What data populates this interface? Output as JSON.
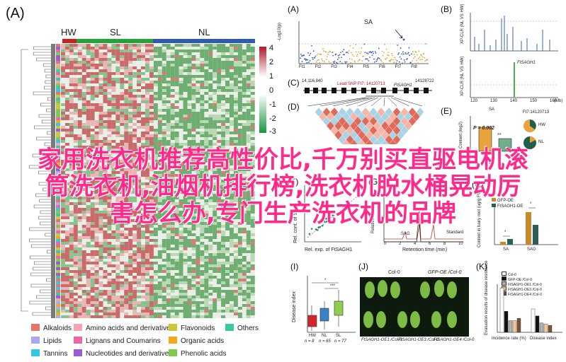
{
  "panelA": {
    "label": "(A)",
    "groups": [
      {
        "name": "HW",
        "color": "#cc1f1f"
      },
      {
        "name": "SL",
        "color": "#22a43a"
      },
      {
        "name": "NL",
        "color": "#2f59b5"
      }
    ],
    "colorbar_ticks": [
      "4",
      "2",
      "1",
      "0",
      "-1",
      "-2",
      "-3"
    ],
    "legend": [
      {
        "name": "Alkaloids",
        "color": "#e8726c"
      },
      {
        "name": "Amino acids and derivatives",
        "color": "#f2a5b4"
      },
      {
        "name": "Flavonoids",
        "color": "#c7c83a"
      },
      {
        "name": "Others",
        "color": "#3cc8a0"
      },
      {
        "name": "Lipids",
        "color": "#a9a9f0"
      },
      {
        "name": "Lignans and Coumarins",
        "color": "#e96aa3"
      },
      {
        "name": "Organic acids",
        "color": "#f2a81f"
      },
      {
        "name": "Tannins",
        "color": "#35c6e6"
      },
      {
        "name": "Nucleotides and derivatives",
        "color": "#9b5bd2"
      },
      {
        "name": "Phenolic acids",
        "color": "#7fca4a"
      }
    ]
  },
  "panelB_A": {
    "label": "(A)",
    "title": "SA",
    "ylabel": "-Log10(p)",
    "chromosomes": [
      "Ft1",
      "Ft2",
      "Ft3",
      "Ft4",
      "Ft5",
      "Ft6",
      "Ft7",
      "Ft8"
    ],
    "yticks": [
      "0",
      "2",
      "4",
      "6",
      "8",
      "10"
    ]
  },
  "panelB": {
    "label": "(B)",
    "top_ylabel": "XP-CLR (NL VS HW)",
    "bottom_ylabel": "XP-CLR (NL VS HW)",
    "gene": "FtSAGH1",
    "xticks": [
      "120",
      "130",
      "140",
      "150",
      "160"
    ],
    "xunit": "(Mb)"
  },
  "panelC": {
    "label": "(C)",
    "left_pos": "14,116,840",
    "right_pos": "14128722",
    "lead_snp": "Lead SNP Ft7: 14120713",
    "gene": "FtSAGH1",
    "scale": "1.0kb"
  },
  "panelD": {
    "label": "(D)"
  },
  "panelE": {
    "label": "(E)",
    "title": "SA",
    "snp": "Ft7:14120713",
    "pvalue": "P = 0.002",
    "sig": "**",
    "ylabel": "Content (log2)",
    "n": "n = 12",
    "pie_labels": [
      "HW",
      "NL"
    ]
  },
  "panelF": {
    "label": "(F)",
    "xlabel": "Rel. exp. of FtSAGH1",
    "ylabel": "Rel. cont. of SA"
  },
  "panelG": {
    "label": "(G)",
    "xlabel": "Retention time (min)",
    "ylabel": "Relative intensity",
    "peaks": [
      "SAG",
      "Standard"
    ],
    "xticks": [
      "0",
      "2",
      "4",
      "6",
      "8",
      "10"
    ]
  },
  "panelH": {
    "label": "(H)",
    "series": [
      "GFP-OE",
      "FtSAGH1-OE"
    ],
    "categories": [
      "SA",
      "SAG"
    ],
    "ylabel": "Content in hairy root (ug/g FW)",
    "sig": [
      "*",
      "*"
    ]
  },
  "panelI": {
    "label": "(I)",
    "ylabel": "Disease index",
    "groups": [
      "HW",
      "NL",
      "SL"
    ],
    "ns": [
      "n = 8",
      "n = 65",
      "n = 77"
    ],
    "sig": [
      "*",
      "***"
    ],
    "yticks": [
      "0",
      "20",
      "40",
      "60",
      "80",
      "100"
    ]
  },
  "panelJ": {
    "label": "(J)",
    "top_labels": [
      "Col-0",
      "GFP-OE /Col-0"
    ],
    "bottom_labels": [
      "FtSAGH1-OE1 /Col-0",
      "FtSAGH1-OE3 /Col-0",
      "FtSAGH1-OE4 /Col-0"
    ]
  },
  "panelK": {
    "label": "(K)",
    "legend": [
      "Col-0",
      "GFP-OE /Col-0",
      "FtSAGH1-OE1 /Col-0",
      "FtSAGH1-OE3 /Col-0",
      "FtSAGH1-OE4 /Col-0"
    ],
    "categories": [
      "Incidence rate (%)",
      "Disease index"
    ],
    "ylabel": "Evaluation results of disease resistance",
    "yticks": [
      "0",
      "20",
      "40",
      "60",
      "80",
      "100"
    ]
  },
  "overlay": {
    "line1": "家用洗衣机推荐高性价比,千万别买直驱电机滚",
    "line2": "筒洗衣机,油烟机排行榜,洗衣机脱水桶晃动厉",
    "line3": "害怎么办,专门生产洗衣机的品牌"
  }
}
